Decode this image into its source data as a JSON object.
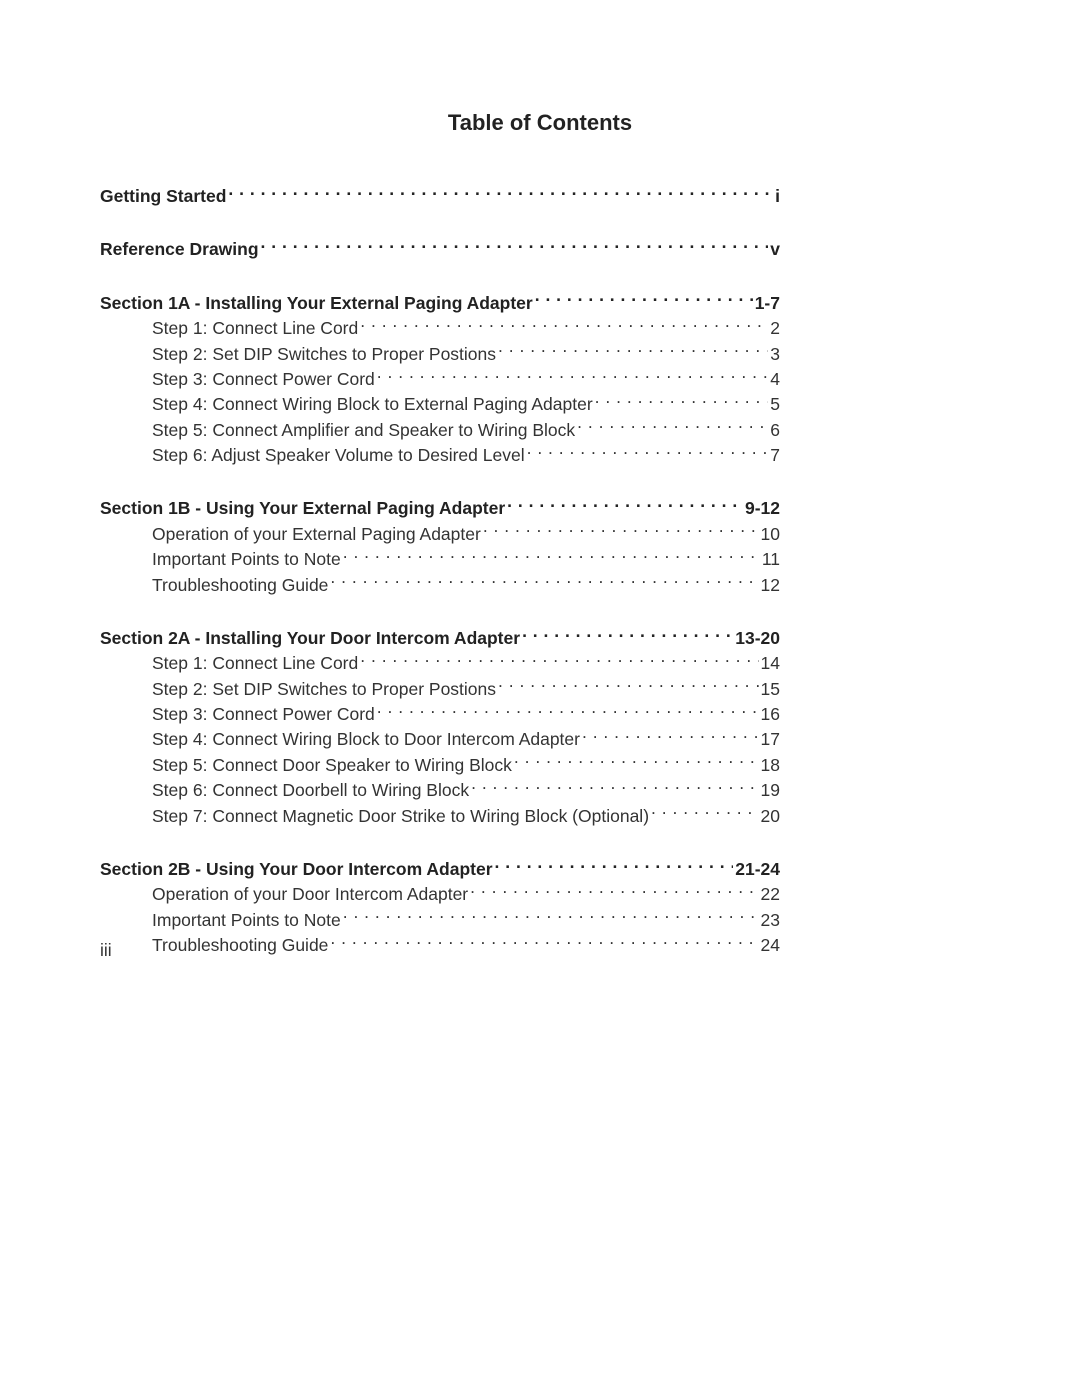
{
  "title": "Table of Contents",
  "footer_page_number": "iii",
  "toc": [
    {
      "type": "top",
      "label": "Getting Started",
      "page": "i"
    },
    {
      "type": "top",
      "label": "Reference Drawing",
      "page": "v"
    },
    {
      "type": "section",
      "label": "Section 1A - Installing Your External Paging Adapter",
      "page": "1-7"
    },
    {
      "type": "sub",
      "label": "Step 1: Connect Line Cord",
      "page": "2"
    },
    {
      "type": "sub",
      "label": "Step 2: Set DIP Switches to Proper Postions",
      "page": "3"
    },
    {
      "type": "sub",
      "label": "Step 3: Connect Power Cord",
      "page": "4"
    },
    {
      "type": "sub",
      "label": "Step 4: Connect Wiring Block to External Paging Adapter",
      "page": "5"
    },
    {
      "type": "sub",
      "label": "Step 5: Connect Amplifier and Speaker to Wiring Block",
      "page": "6"
    },
    {
      "type": "sub",
      "label": "Step 6: Adjust Speaker Volume to Desired Level",
      "page": "7"
    },
    {
      "type": "section",
      "label": "Section 1B - Using Your External Paging Adapter",
      "page": "9-12"
    },
    {
      "type": "sub",
      "label": "Operation of your External Paging Adapter",
      "page": "10"
    },
    {
      "type": "sub",
      "label": "Important Points to Note",
      "page": "11"
    },
    {
      "type": "sub",
      "label": "Troubleshooting Guide",
      "page": "12"
    },
    {
      "type": "section",
      "label": "Section 2A - Installing Your Door Intercom Adapter",
      "page": "13-20"
    },
    {
      "type": "sub",
      "label": "Step 1: Connect Line Cord",
      "page": "14"
    },
    {
      "type": "sub",
      "label": "Step 2: Set DIP Switches to Proper Postions",
      "page": "15"
    },
    {
      "type": "sub",
      "label": "Step 3: Connect Power Cord",
      "page": "16"
    },
    {
      "type": "sub",
      "label": "Step 4: Connect Wiring Block to Door Intercom Adapter",
      "page": "17"
    },
    {
      "type": "sub",
      "label": "Step 5: Connect Door Speaker to Wiring Block",
      "page": "18"
    },
    {
      "type": "sub",
      "label": "Step 6: Connect Doorbell to Wiring Block",
      "page": "19"
    },
    {
      "type": "sub",
      "label": "Step 7: Connect Magnetic Door Strike to Wiring Block (Optional)",
      "page": "20"
    },
    {
      "type": "section",
      "label": "Section 2B - Using Your Door Intercom Adapter",
      "page": "21-24"
    },
    {
      "type": "sub",
      "label": "Operation of your Door Intercom Adapter",
      "page": "22"
    },
    {
      "type": "sub",
      "label": "Important Points to Note",
      "page": "23"
    },
    {
      "type": "sub",
      "label": "Troubleshooting Guide",
      "page": "24"
    }
  ]
}
